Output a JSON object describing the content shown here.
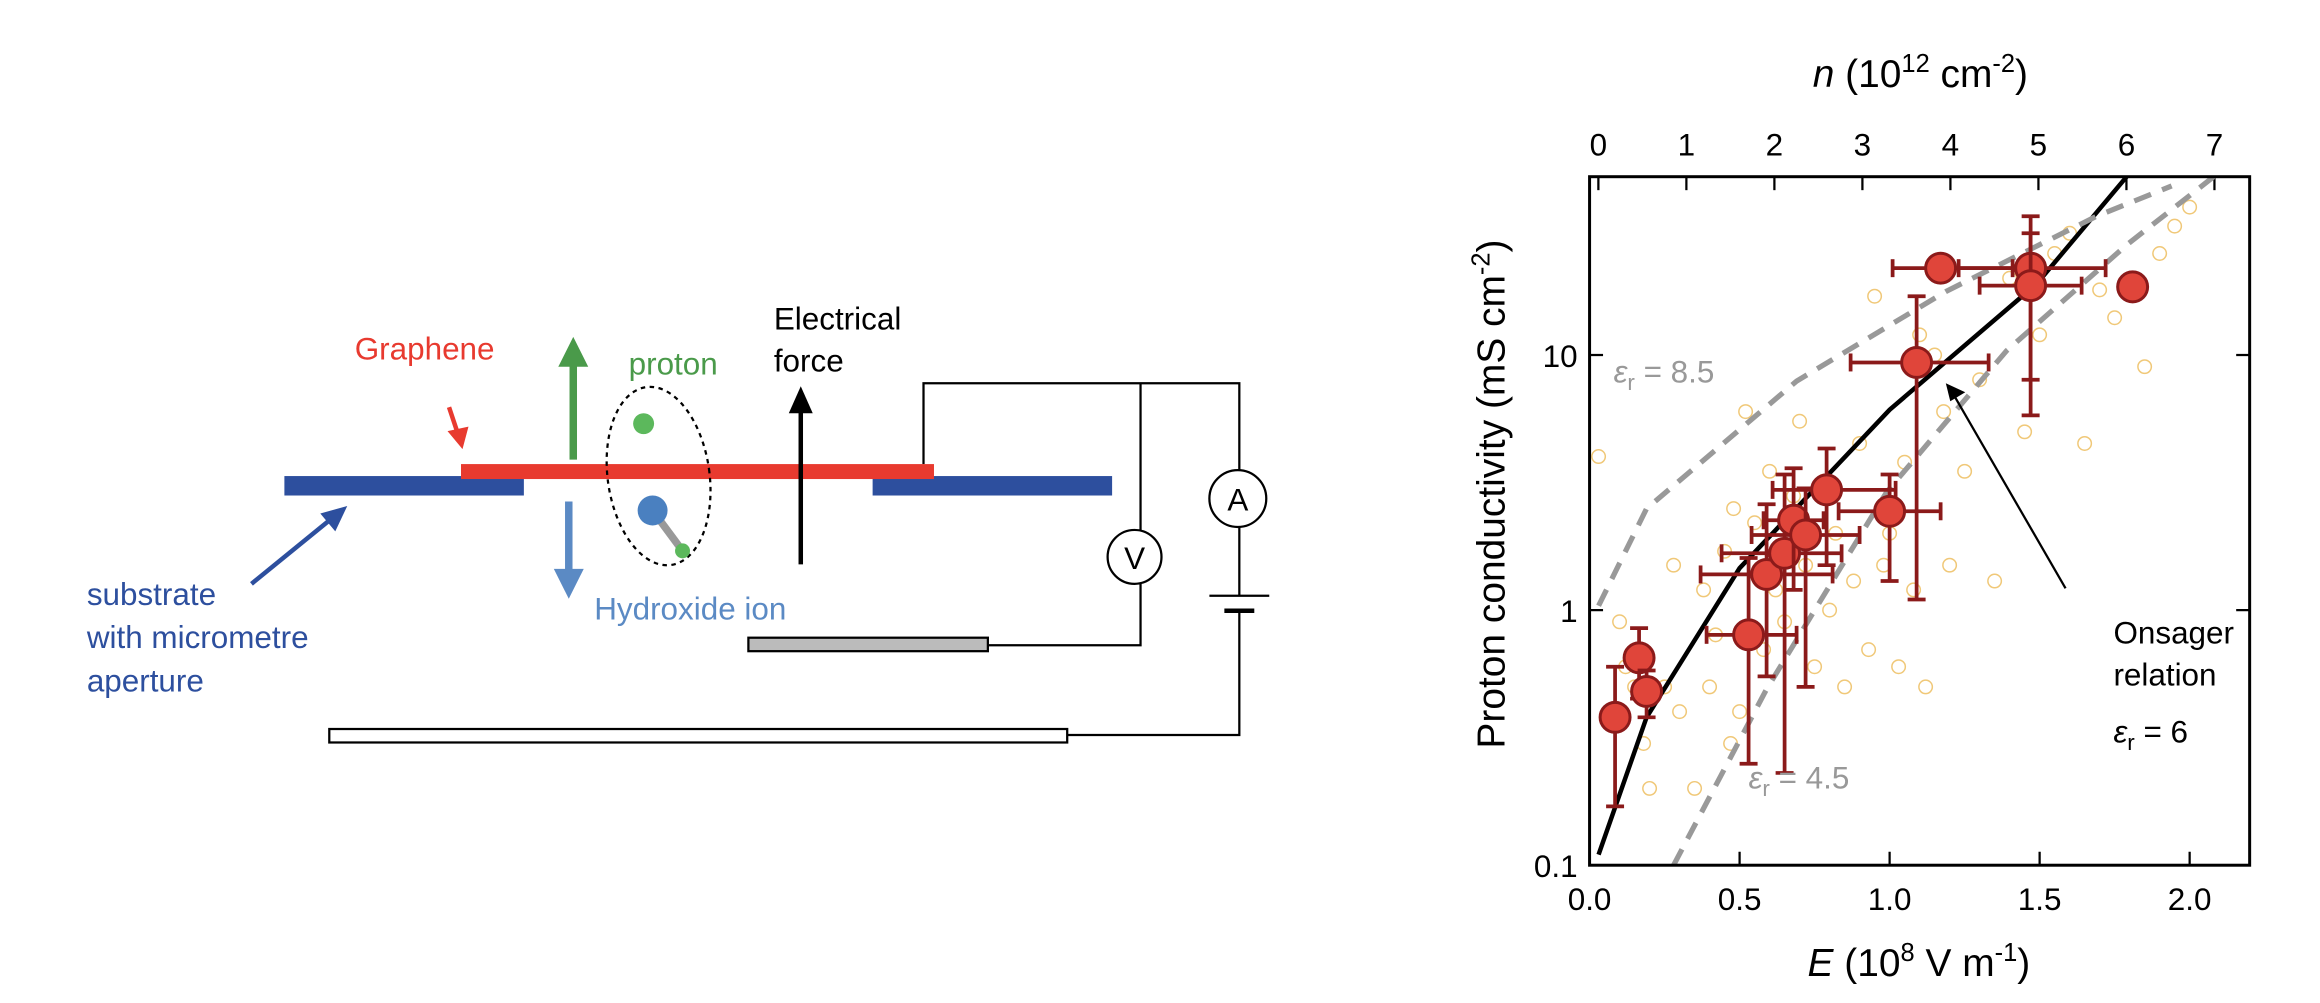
{
  "diagram": {
    "graphene": "Graphene",
    "proton": "proton",
    "force": [
      "Electrical",
      "force"
    ],
    "hydroxide": "Hydroxide ion",
    "substrate": [
      "substrate",
      "with micrometre",
      "aperture"
    ],
    "voltmeter": "V",
    "ammeter": "A"
  },
  "chart_data": {
    "type": "scatter",
    "xlabel": [
      "E",
      " (10",
      "8",
      " V m",
      "-1",
      ")"
    ],
    "ylabel": [
      "Proton conductivity (mS cm",
      "-2",
      ")"
    ],
    "x2label": [
      "n",
      " (10",
      "12",
      " cm",
      "-2",
      ")"
    ],
    "xlim": [
      0,
      2.2
    ],
    "ylim": [
      0.1,
      50
    ],
    "ylog": true,
    "x2lim": [
      -0.1,
      7.4
    ],
    "xticks": [
      {
        "value": 0,
        "label": "0.0"
      },
      {
        "value": 0.5,
        "label": "0.5"
      },
      {
        "value": 1,
        "label": "1.0"
      },
      {
        "value": 1.5,
        "label": "1.5"
      },
      {
        "value": 2,
        "label": "2.0"
      }
    ],
    "yticks": [
      0.1,
      1,
      10
    ],
    "x2ticks": [
      0,
      1,
      2,
      3,
      4,
      5,
      6,
      7
    ],
    "series": [
      {
        "style": "open-circle",
        "color": "#f0c878",
        "x": [
          0.03,
          0.1,
          0.12,
          0.15,
          0.18,
          0.2,
          0.25,
          0.28,
          0.3,
          0.35,
          0.38,
          0.4,
          0.42,
          0.45,
          0.47,
          0.48,
          0.5,
          0.52,
          0.55,
          0.58,
          0.6,
          0.62,
          0.65,
          0.68,
          0.7,
          0.72,
          0.75,
          0.78,
          0.8,
          0.82,
          0.85,
          0.88,
          0.9,
          0.93,
          0.95,
          0.98,
          1.0,
          1.03,
          1.05,
          1.08,
          1.1,
          1.12,
          1.15,
          1.18,
          1.2,
          1.25,
          1.3,
          1.35,
          1.4,
          1.45,
          1.5,
          1.55,
          1.6,
          1.65,
          1.7,
          1.75,
          1.85,
          1.9,
          1.95,
          2.0
        ],
        "values": [
          4,
          0.9,
          0.6,
          0.5,
          0.3,
          0.2,
          0.5,
          1.5,
          0.4,
          0.2,
          1.2,
          0.5,
          0.8,
          1.7,
          0.3,
          2.5,
          0.4,
          6,
          2.2,
          0.7,
          3.5,
          1.2,
          0.9,
          2.8,
          5.5,
          1.5,
          0.6,
          3.2,
          1.0,
          2.0,
          0.5,
          1.3,
          4.5,
          0.7,
          17,
          1.5,
          2.0,
          0.6,
          3.8,
          1.2,
          12,
          0.5,
          10,
          6,
          1.5,
          3.5,
          8,
          1.3,
          20,
          5,
          12,
          25,
          30,
          4.5,
          18,
          14,
          9,
          25,
          32,
          38
        ]
      },
      {
        "style": "line",
        "color": "#000000",
        "x": [
          0.03,
          0.19,
          0.5,
          1.0,
          1.49,
          1.79
        ],
        "values": [
          0.11,
          0.38,
          1.46,
          6.1,
          19,
          50
        ]
      },
      {
        "style": "dashed",
        "color": "#999999",
        "x": [
          0.03,
          0.19,
          0.69,
          1.19,
          1.69,
          1.94
        ],
        "values": [
          1.04,
          2.5,
          7.9,
          17.8,
          35,
          46
        ]
      },
      {
        "style": "dashed",
        "color": "#999999",
        "x": [
          0.28,
          0.59,
          0.99,
          1.39,
          1.79,
          2.08
        ],
        "values": [
          0.1,
          0.49,
          2.9,
          10.4,
          27,
          50
        ]
      },
      {
        "style": "marker",
        "color": "#e0453a",
        "x": [
          0.085,
          0.165,
          0.19,
          0.53,
          0.59,
          0.65,
          0.68,
          0.72,
          0.79,
          1.0,
          1.09,
          1.17,
          1.47,
          1.47,
          1.81
        ],
        "values": [
          0.38,
          0.65,
          0.48,
          0.8,
          1.38,
          1.67,
          2.25,
          1.97,
          2.96,
          2.44,
          9.35,
          21.9,
          21.9,
          18.7,
          18.5
        ],
        "x_lo": [
          0.05,
          0.13,
          0.16,
          0.39,
          0.37,
          0.44,
          0.58,
          0.54,
          0.61,
          0.83,
          0.87,
          1.01,
          1.23,
          1.3,
          1.79
        ],
        "x_hi": [
          0.12,
          0.2,
          0.22,
          0.69,
          0.81,
          0.84,
          0.78,
          0.9,
          1.02,
          1.17,
          1.33,
          1.41,
          1.72,
          1.64,
          1.83
        ],
        "y_lo": [
          0.17,
          0.45,
          0.38,
          0.25,
          0.55,
          0.23,
          1.2,
          0.5,
          1.5,
          1.3,
          1.1,
          21,
          5.8,
          8,
          18
        ],
        "y_hi": [
          0.6,
          0.85,
          0.58,
          1.6,
          2.6,
          3.4,
          3.6,
          3.0,
          4.3,
          3.4,
          17,
          23,
          35,
          30,
          19
        ]
      }
    ],
    "annotations": [
      {
        "sym": "ε",
        "sub": "r",
        "text": " = 8.5",
        "x": 0.08,
        "y": 7.8
      },
      {
        "sym": "ε",
        "sub": "r",
        "text": " = 4.5",
        "x": 0.53,
        "y": 0.2
      }
    ],
    "note": [
      "Onsager",
      "relation"
    ],
    "note_sym": [
      "ε",
      "r",
      " = 6"
    ]
  }
}
